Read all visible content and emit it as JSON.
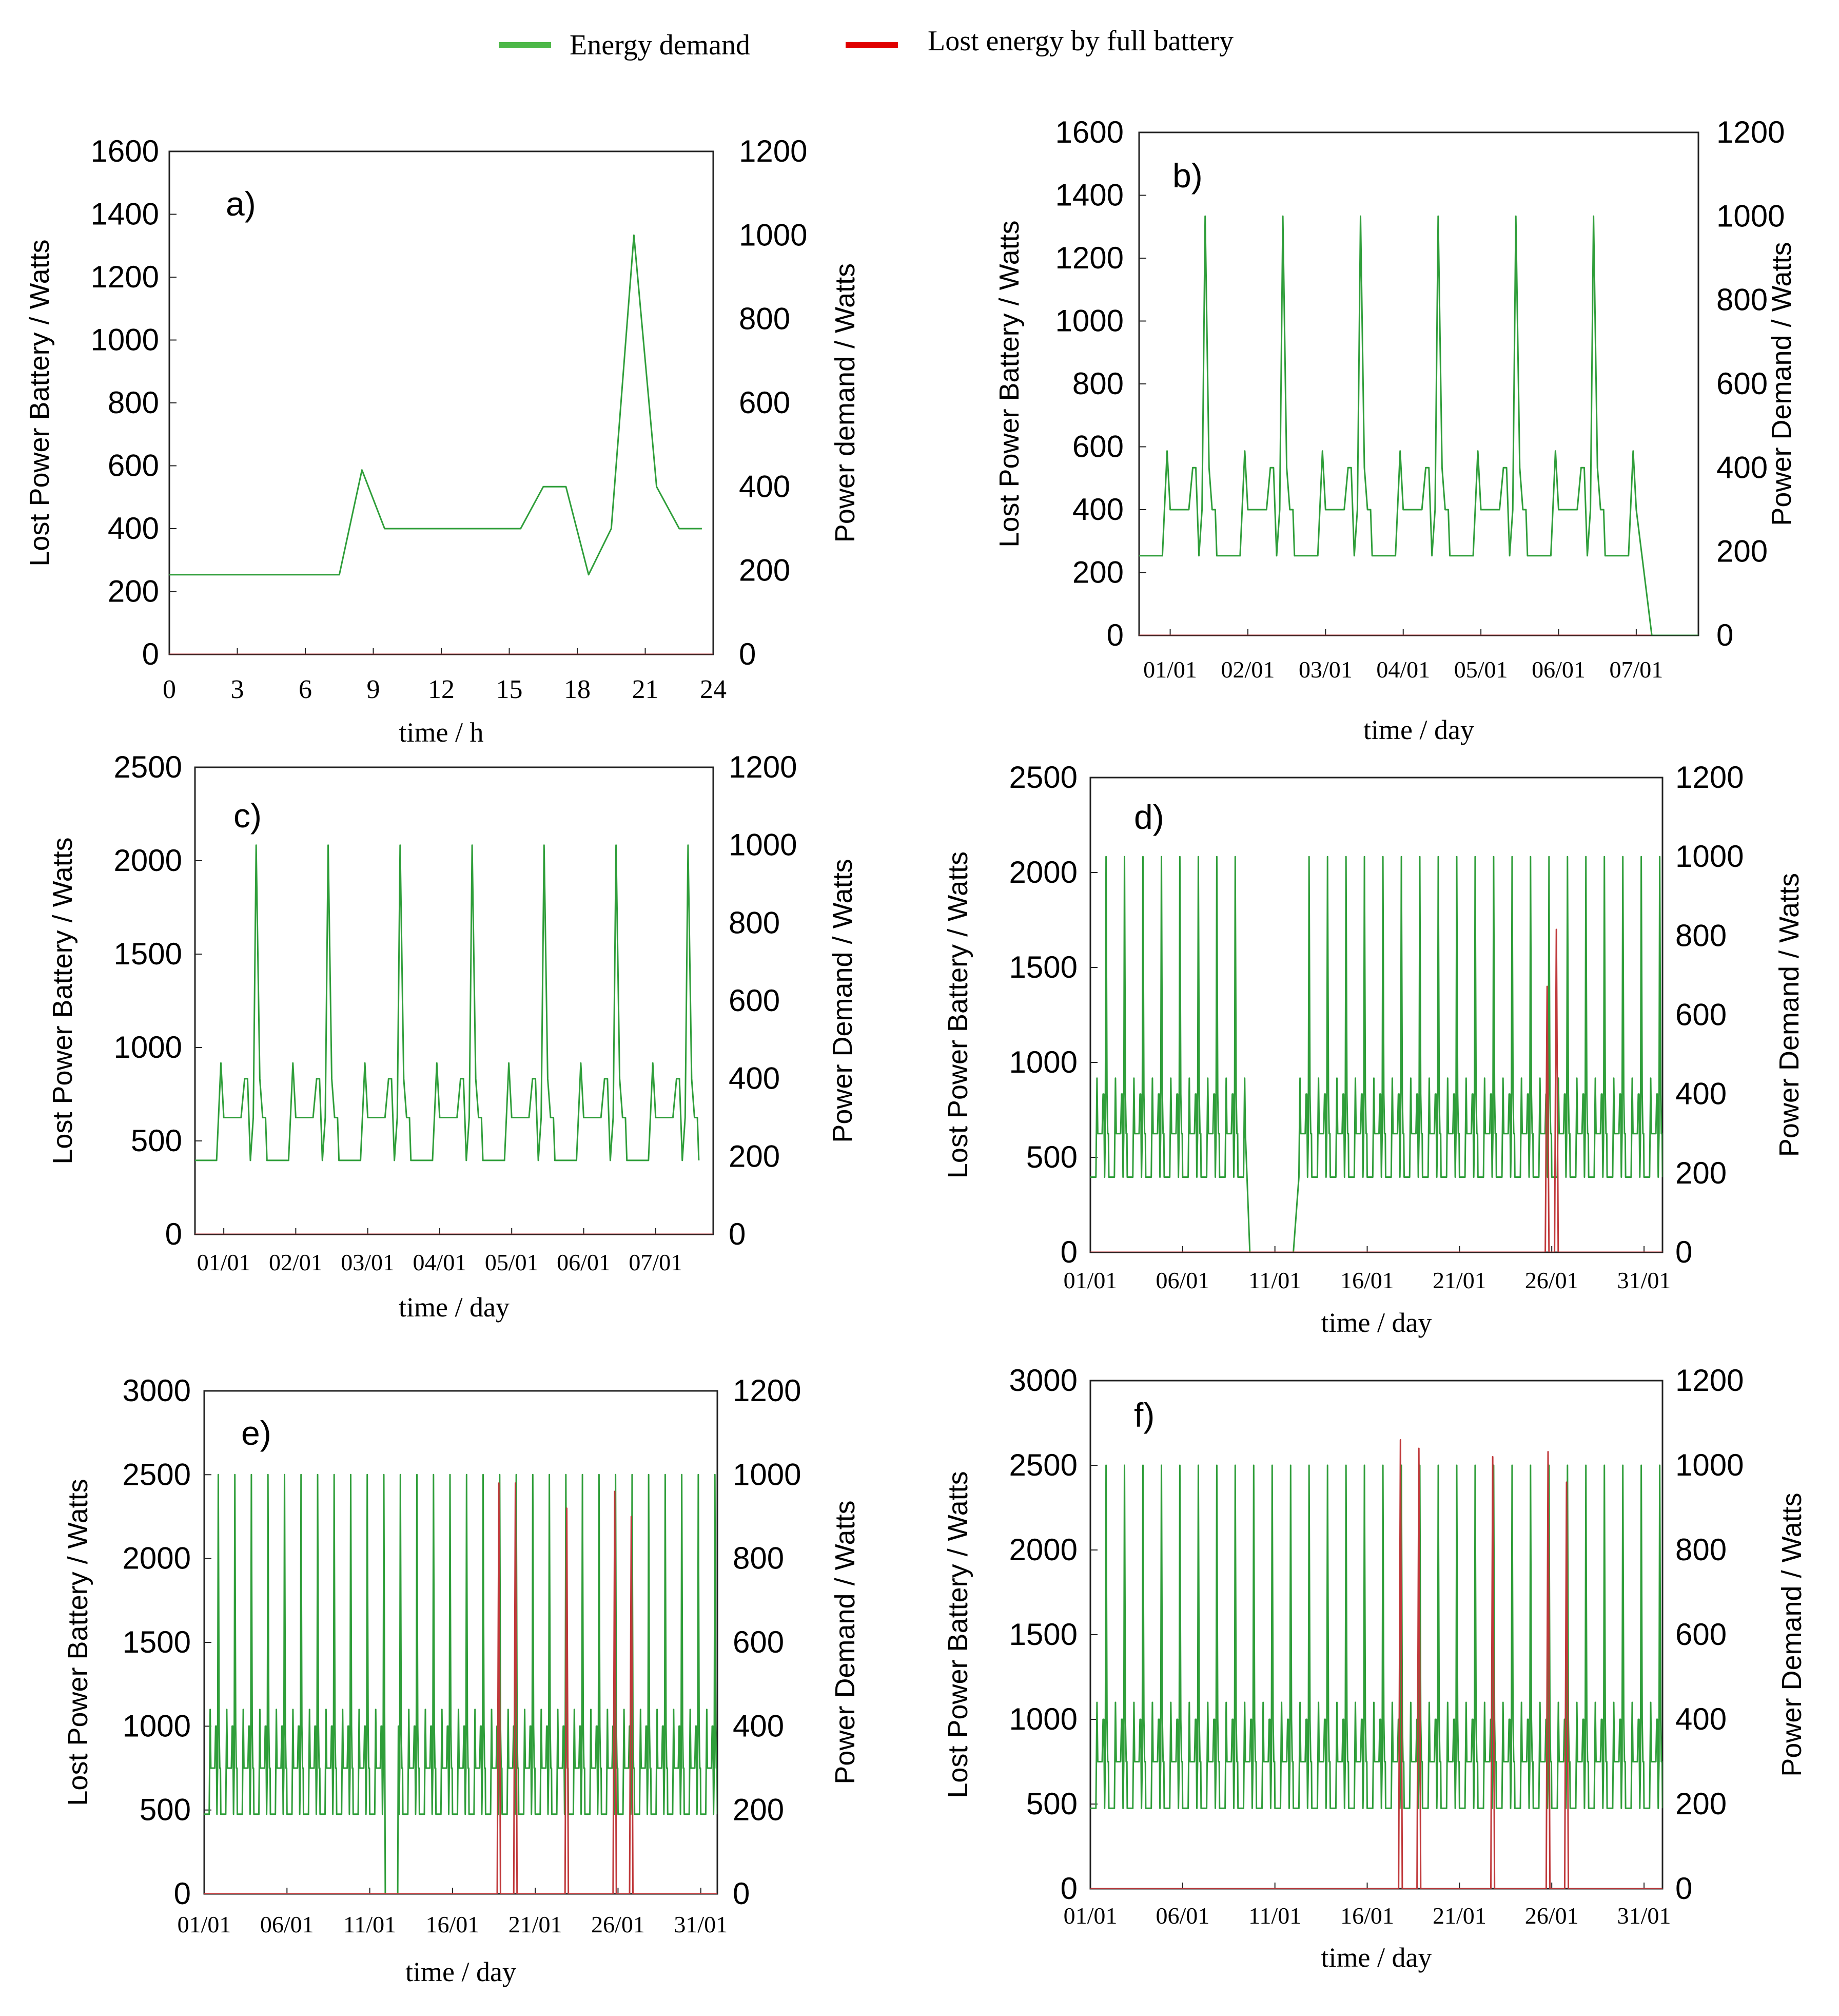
{
  "legend": [
    {
      "label": "Energy demand",
      "color": "#4db848"
    },
    {
      "label": "Lost energy by full battery",
      "color": "#e00000"
    }
  ],
  "colors": {
    "demand": "#2f9e3a",
    "lost": "#c0393b",
    "frame": "#222222"
  },
  "chart_data": [
    {
      "type": "line",
      "panel_label": "a)",
      "xlabel": "time / h",
      "ylabel_left": "Lost Power Battery / Watts",
      "ylabel_right": "Power demand / Watts",
      "left_ylim": [
        0,
        1600
      ],
      "left_yticks": [
        "0",
        "200",
        "400",
        "600",
        "800",
        "1000",
        "1200",
        "1400",
        "1600"
      ],
      "right_ylim": [
        0,
        1200
      ],
      "right_yticks": [
        "0",
        "200",
        "400",
        "600",
        "800",
        "1000",
        "1200"
      ],
      "xlim": [
        0,
        24
      ],
      "xticks": [
        "0",
        "3",
        "6",
        "9",
        "12",
        "15",
        "18",
        "21",
        "24"
      ],
      "series": [
        {
          "key": "demand",
          "axis": "right",
          "x": [
            0,
            7.5,
            8.5,
            9.5,
            15.5,
            16.5,
            17.5,
            18.5,
            19.5,
            20.5,
            21.5,
            22.5,
            23.5
          ],
          "y": [
            190,
            190,
            440,
            300,
            300,
            400,
            400,
            190,
            300,
            1000,
            400,
            300,
            300
          ]
        },
        {
          "key": "lost",
          "axis": "left",
          "x": [
            0,
            24
          ],
          "y": [
            0,
            0
          ]
        }
      ]
    },
    {
      "type": "line",
      "panel_label": "b)",
      "xlabel": "time / day",
      "ylabel_left": "Lost Power Battery / Watts",
      "ylabel_right": "Power Demand / Watts",
      "left_ylim": [
        0,
        1600
      ],
      "left_yticks": [
        "0",
        "200",
        "400",
        "600",
        "800",
        "1000",
        "1200",
        "1400",
        "1600"
      ],
      "right_ylim": [
        0,
        1200
      ],
      "right_yticks": [
        "0",
        "200",
        "400",
        "600",
        "800",
        "1000",
        "1200"
      ],
      "xlim": [
        0,
        7.2
      ],
      "xticks": [
        "01/01",
        "02/01",
        "03/01",
        "04/01",
        "05/01",
        "06/01",
        "07/01"
      ],
      "demand_pattern": {
        "day_start": 0,
        "day_end": 6.6,
        "zero_after": 6.6
      },
      "series": [
        {
          "key": "lost",
          "axis": "left",
          "x": [
            0,
            7.2
          ],
          "y": [
            0,
            0
          ]
        }
      ]
    },
    {
      "type": "line",
      "panel_label": "c)",
      "xlabel": "time / day",
      "ylabel_left": "Lost Power Battery / Watts",
      "ylabel_right": "Power Demand / Watts",
      "left_ylim": [
        0,
        2500
      ],
      "left_yticks": [
        "0",
        "500",
        "1000",
        "1500",
        "2000",
        "2500"
      ],
      "right_ylim": [
        0,
        1200
      ],
      "right_yticks": [
        "0",
        "200",
        "400",
        "600",
        "800",
        "1000",
        "1200"
      ],
      "xlim": [
        0,
        7.2
      ],
      "xticks": [
        "01/01",
        "02/01",
        "03/01",
        "04/01",
        "05/01",
        "06/01",
        "07/01"
      ],
      "demand_pattern": {
        "day_start": 0,
        "day_end": 7.2
      },
      "series": [
        {
          "key": "lost",
          "axis": "left",
          "x": [
            0,
            7.2
          ],
          "y": [
            0,
            0
          ]
        }
      ]
    },
    {
      "type": "line",
      "panel_label": "d)",
      "xlabel": "time / day",
      "ylabel_left": "Lost Power Battery / Watts",
      "ylabel_right": "Power Demand / Watts",
      "left_ylim": [
        0,
        2500
      ],
      "left_yticks": [
        "0",
        "500",
        "1000",
        "1500",
        "2000",
        "2500"
      ],
      "right_ylim": [
        0,
        1200
      ],
      "right_yticks": [
        "0",
        "200",
        "400",
        "600",
        "800",
        "1000",
        "1200"
      ],
      "xlim": [
        0,
        31
      ],
      "xticks": [
        "01/01",
        "06/01",
        "11/01",
        "16/01",
        "21/01",
        "26/01",
        "31/01"
      ],
      "demand_pattern": {
        "day_start": 0,
        "day_end": 31,
        "gap": [
          8.5,
          11.0
        ]
      },
      "lost_spikes": [
        {
          "day": 24.75,
          "value": 1400
        },
        {
          "day": 25.25,
          "value": 1700
        }
      ],
      "series": []
    },
    {
      "type": "line",
      "panel_label": "e)",
      "xlabel": "time / day",
      "ylabel_left": "Lost Power Battery / Watts",
      "ylabel_right": "Power Demand / Watts",
      "left_ylim": [
        0,
        3000
      ],
      "left_yticks": [
        "0",
        "500",
        "1000",
        "1500",
        "2000",
        "2500",
        "3000"
      ],
      "right_ylim": [
        0,
        1200
      ],
      "right_yticks": [
        "0",
        "200",
        "400",
        "600",
        "800",
        "1000",
        "1200"
      ],
      "xlim": [
        0,
        31
      ],
      "xticks": [
        "01/01",
        "06/01",
        "11/01",
        "16/01",
        "21/01",
        "26/01",
        "31/01"
      ],
      "demand_pattern": {
        "day_start": 0,
        "day_end": 31,
        "dip": 11.3
      },
      "lost_spikes": [
        {
          "day": 17.8,
          "value": 2450
        },
        {
          "day": 18.8,
          "value": 2450
        },
        {
          "day": 21.9,
          "value": 2300
        },
        {
          "day": 24.8,
          "value": 2400
        },
        {
          "day": 25.8,
          "value": 2250
        }
      ],
      "series": []
    },
    {
      "type": "line",
      "panel_label": "f)",
      "xlabel": "time / day",
      "ylabel_left": "Lost Power Battery / Watts",
      "ylabel_right": "Power Demand / Watts",
      "left_ylim": [
        0,
        3000
      ],
      "left_yticks": [
        "0",
        "500",
        "1000",
        "1500",
        "2000",
        "2500",
        "3000"
      ],
      "right_ylim": [
        0,
        1200
      ],
      "right_yticks": [
        "0",
        "200",
        "400",
        "600",
        "800",
        "1000",
        "1200"
      ],
      "xlim": [
        0,
        31
      ],
      "xticks": [
        "01/01",
        "06/01",
        "11/01",
        "16/01",
        "21/01",
        "26/01",
        "31/01"
      ],
      "demand_pattern": {
        "day_start": 0,
        "day_end": 31
      },
      "lost_spikes": [
        {
          "day": 16.8,
          "value": 2650
        },
        {
          "day": 17.8,
          "value": 2600
        },
        {
          "day": 21.8,
          "value": 2550
        },
        {
          "day": 24.8,
          "value": 2580
        },
        {
          "day": 25.8,
          "value": 2400
        }
      ],
      "series": []
    }
  ]
}
